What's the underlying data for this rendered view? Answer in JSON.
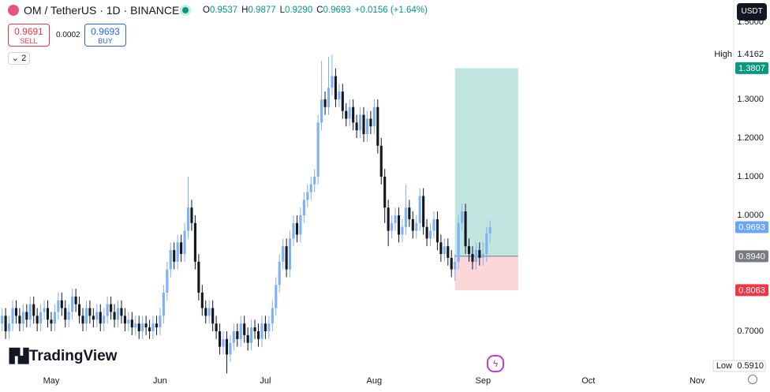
{
  "header": {
    "symbol": "OM / TetherUS · 1D · BINANCE",
    "ohlc": [
      {
        "label": "O",
        "value": "0.9537"
      },
      {
        "label": "H",
        "value": "0.9877"
      },
      {
        "label": "L",
        "value": "0.9290"
      },
      {
        "label": "C",
        "value": "0.9693"
      }
    ],
    "change": "+0.0156 (+1.64%)"
  },
  "trade": {
    "sell_price": "0.9691",
    "sell": "SELL",
    "spread": "0.0002",
    "buy_price": "0.9693",
    "buy": "BUY"
  },
  "indicators": "2",
  "currency": "USDT",
  "logo": "TradingView",
  "chart_data": {
    "type": "candlestick",
    "up_color": "#7fb0f5",
    "down_color": "#131722",
    "open": [
      0.72,
      0.74,
      0.7,
      0.72,
      0.76,
      0.74,
      0.72,
      0.75,
      0.73,
      0.77,
      0.74,
      0.72,
      0.75,
      0.76,
      0.73,
      0.72,
      0.75,
      0.78,
      0.76,
      0.73,
      0.75,
      0.79,
      0.77,
      0.74,
      0.72,
      0.76,
      0.74,
      0.73,
      0.75,
      0.72,
      0.74,
      0.77,
      0.75,
      0.73,
      0.76,
      0.74,
      0.72,
      0.73,
      0.71,
      0.72,
      0.7,
      0.72,
      0.71,
      0.7,
      0.72,
      0.71,
      0.74,
      0.8,
      0.86,
      0.91,
      0.88,
      0.93,
      0.9,
      0.96,
      1.02,
      0.98,
      0.88,
      0.8,
      0.76,
      0.74,
      0.76,
      0.72,
      0.7,
      0.66,
      0.68,
      0.64,
      0.67,
      0.7,
      0.68,
      0.72,
      0.69,
      0.67,
      0.71,
      0.7,
      0.68,
      0.72,
      0.7,
      0.72,
      0.76,
      0.82,
      0.88,
      0.92,
      0.86,
      0.94,
      0.98,
      0.95,
      1.0,
      1.04,
      1.06,
      1.08,
      1.1,
      1.24,
      1.3,
      1.28,
      1.33,
      1.36,
      1.3,
      1.32,
      1.27,
      1.25,
      1.28,
      1.24,
      1.22,
      1.26,
      1.21,
      1.25,
      1.23,
      1.28,
      1.18,
      1.1,
      1.02,
      0.96,
      0.98,
      1.0,
      0.95,
      0.97,
      1.02,
      0.99,
      0.96,
      0.98,
      1.05,
      0.97,
      0.94,
      0.96,
      0.99,
      0.93,
      0.9,
      0.92,
      0.89,
      0.86,
      0.88,
      0.98,
      1.01,
      0.92,
      0.9,
      0.88,
      0.91,
      0.89,
      0.9,
      0.9537
    ],
    "high": [
      0.76,
      0.76,
      0.74,
      0.78,
      0.78,
      0.76,
      0.77,
      0.77,
      0.79,
      0.79,
      0.76,
      0.77,
      0.78,
      0.78,
      0.75,
      0.77,
      0.8,
      0.8,
      0.78,
      0.77,
      0.81,
      0.81,
      0.79,
      0.76,
      0.78,
      0.78,
      0.76,
      0.77,
      0.77,
      0.76,
      0.79,
      0.79,
      0.77,
      0.78,
      0.78,
      0.76,
      0.75,
      0.75,
      0.74,
      0.74,
      0.74,
      0.74,
      0.73,
      0.74,
      0.74,
      0.76,
      0.82,
      0.88,
      0.93,
      0.93,
      0.95,
      0.95,
      0.98,
      1.1,
      1.04,
      1.0,
      0.9,
      0.82,
      0.78,
      0.78,
      0.78,
      0.74,
      0.72,
      0.7,
      0.7,
      0.69,
      0.72,
      0.72,
      0.74,
      0.74,
      0.71,
      0.73,
      0.73,
      0.72,
      0.74,
      0.74,
      0.74,
      0.78,
      0.84,
      0.9,
      0.94,
      0.94,
      0.96,
      1.0,
      1.0,
      1.02,
      1.06,
      1.08,
      1.1,
      1.12,
      1.26,
      1.4,
      1.32,
      1.41,
      1.4162,
      1.38,
      1.34,
      1.34,
      1.29,
      1.3,
      1.3,
      1.26,
      1.28,
      1.28,
      1.27,
      1.27,
      1.3,
      1.3,
      1.2,
      1.12,
      1.04,
      1.0,
      1.02,
      1.02,
      0.99,
      1.08,
      1.04,
      1.01,
      1.0,
      1.07,
      1.07,
      0.99,
      0.98,
      1.01,
      1.01,
      0.95,
      0.94,
      0.94,
      0.91,
      0.9,
      1.0,
      1.03,
      1.03,
      0.94,
      0.92,
      0.93,
      0.93,
      0.93,
      0.97,
      0.9877
    ],
    "low": [
      0.7,
      0.68,
      0.68,
      0.7,
      0.72,
      0.7,
      0.7,
      0.71,
      0.71,
      0.72,
      0.7,
      0.7,
      0.73,
      0.71,
      0.7,
      0.7,
      0.73,
      0.74,
      0.71,
      0.71,
      0.73,
      0.75,
      0.72,
      0.7,
      0.7,
      0.72,
      0.71,
      0.71,
      0.7,
      0.7,
      0.72,
      0.73,
      0.71,
      0.71,
      0.72,
      0.7,
      0.7,
      0.69,
      0.69,
      0.68,
      0.68,
      0.69,
      0.68,
      0.68,
      0.69,
      0.69,
      0.72,
      0.78,
      0.84,
      0.86,
      0.86,
      0.88,
      0.88,
      0.94,
      0.96,
      0.86,
      0.78,
      0.74,
      0.72,
      0.72,
      0.7,
      0.68,
      0.64,
      0.64,
      0.591,
      0.62,
      0.65,
      0.66,
      0.66,
      0.67,
      0.65,
      0.65,
      0.68,
      0.66,
      0.66,
      0.68,
      0.68,
      0.7,
      0.74,
      0.8,
      0.86,
      0.84,
      0.84,
      0.92,
      0.93,
      0.93,
      0.98,
      1.02,
      1.04,
      1.06,
      1.08,
      1.22,
      1.26,
      1.26,
      1.31,
      1.28,
      1.28,
      1.25,
      1.23,
      1.23,
      1.22,
      1.2,
      1.2,
      1.19,
      1.19,
      1.21,
      1.21,
      1.16,
      1.08,
      0.98,
      0.92,
      0.94,
      0.96,
      0.93,
      0.93,
      0.95,
      0.97,
      0.94,
      0.94,
      0.96,
      0.95,
      0.92,
      0.92,
      0.94,
      0.91,
      0.88,
      0.88,
      0.87,
      0.84,
      0.83,
      0.86,
      0.96,
      0.9,
      0.88,
      0.86,
      0.86,
      0.87,
      0.87,
      0.88,
      0.929
    ],
    "close": [
      0.74,
      0.7,
      0.72,
      0.76,
      0.74,
      0.72,
      0.75,
      0.73,
      0.77,
      0.74,
      0.72,
      0.75,
      0.76,
      0.73,
      0.72,
      0.75,
      0.78,
      0.76,
      0.73,
      0.75,
      0.79,
      0.77,
      0.74,
      0.72,
      0.76,
      0.74,
      0.73,
      0.75,
      0.72,
      0.74,
      0.77,
      0.75,
      0.73,
      0.76,
      0.74,
      0.72,
      0.73,
      0.71,
      0.72,
      0.7,
      0.72,
      0.71,
      0.7,
      0.72,
      0.71,
      0.74,
      0.8,
      0.86,
      0.91,
      0.88,
      0.93,
      0.9,
      0.96,
      1.02,
      0.98,
      0.88,
      0.8,
      0.76,
      0.74,
      0.76,
      0.72,
      0.7,
      0.66,
      0.68,
      0.64,
      0.67,
      0.7,
      0.68,
      0.72,
      0.69,
      0.67,
      0.71,
      0.7,
      0.68,
      0.72,
      0.7,
      0.72,
      0.76,
      0.82,
      0.88,
      0.92,
      0.86,
      0.94,
      0.98,
      0.95,
      1.0,
      1.04,
      1.06,
      1.08,
      1.1,
      1.24,
      1.3,
      1.28,
      1.33,
      1.36,
      1.3,
      1.32,
      1.27,
      1.25,
      1.28,
      1.24,
      1.22,
      1.26,
      1.21,
      1.25,
      1.23,
      1.28,
      1.18,
      1.1,
      1.02,
      0.96,
      0.98,
      1.0,
      0.95,
      0.97,
      1.02,
      0.99,
      0.96,
      0.98,
      1.05,
      0.97,
      0.94,
      0.96,
      0.99,
      0.93,
      0.9,
      0.92,
      0.89,
      0.86,
      0.88,
      0.98,
      1.01,
      0.92,
      0.9,
      0.88,
      0.91,
      0.89,
      0.9,
      0.9537,
      0.9693
    ],
    "xlim": [
      -0.6,
      208.4
    ],
    "xticks": [
      {
        "value": 14,
        "label": "May"
      },
      {
        "value": 45,
        "label": "Jun"
      },
      {
        "value": 75,
        "label": "Jul"
      },
      {
        "value": 106,
        "label": "Aug"
      },
      {
        "value": 137,
        "label": "Sep"
      },
      {
        "value": 167,
        "label": "Oct"
      },
      {
        "value": 198,
        "label": "Nov"
      }
    ],
    "ylim": [
      0.598,
      1.557
    ],
    "yticks": [
      {
        "value": 0.7,
        "label": "0.7000"
      },
      {
        "value": 1,
        "label": "1.0000"
      },
      {
        "value": 1.1,
        "label": "1.1000"
      },
      {
        "value": 1.2,
        "label": "1.2000"
      },
      {
        "value": 1.3,
        "label": "1.3000"
      },
      {
        "value": 1.5,
        "label": "1.5000"
      }
    ],
    "range_high_label": "High",
    "range_high": 1.4162,
    "range_low_label": "Low",
    "range_low": {
      "value": 0.591,
      "label": "0.5910"
    },
    "last_color": "#6aa6f8",
    "position": {
      "start": 129,
      "end": 147,
      "target": 1.3807,
      "entry": {
        "value": 0.894,
        "label": "0.8940"
      },
      "stop": 0.8063,
      "target_color": "#089981",
      "entry_color": "#787b86",
      "stop_color": "#f23645"
    }
  }
}
